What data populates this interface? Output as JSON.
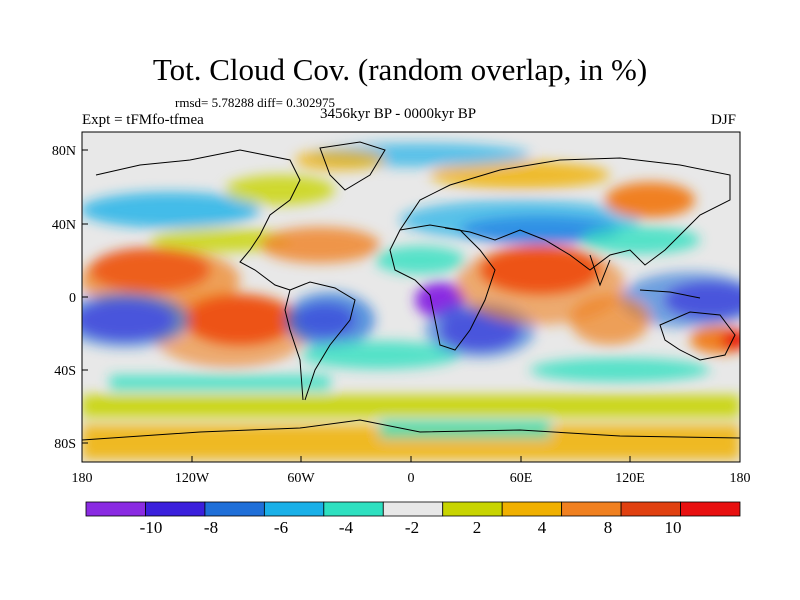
{
  "title": "Tot. Cloud Cov. (random overlap, in %)",
  "stats": "rmsd= 5.78288 diff= 0.302975",
  "experiment": "Expt = tFMfo-tfmea",
  "period": "3456kyr BP - 0000kyr BP",
  "season": "DJF",
  "axes": {
    "lon_ticks": [
      "180",
      "120W",
      "60W",
      "0",
      "60E",
      "120E",
      "180"
    ],
    "lat_ticks": [
      "80N",
      "40N",
      "0",
      "40S",
      "80S"
    ]
  },
  "colorbar": {
    "colors": [
      "#8a2be2",
      "#3b1fdc",
      "#1f6fd8",
      "#1ab0e8",
      "#2ee0c0",
      "#e8e8e8",
      "#c8d400",
      "#f0b000",
      "#f08020",
      "#e04010",
      "#e81010"
    ],
    "labels": [
      "-10",
      "-8",
      "-6",
      "-4",
      "-2",
      "2",
      "4",
      "8",
      "10"
    ]
  },
  "chart_data": {
    "type": "heatmap",
    "title": "Tot. Cloud Cov. (random overlap, in %)",
    "subtitle": "3456kyr BP - 0000kyr BP",
    "xlabel": "",
    "ylabel": "",
    "xlim": [
      -180,
      180
    ],
    "ylim": [
      -90,
      90
    ],
    "units": "%",
    "levels": [
      -10,
      -8,
      -6,
      -4,
      -2,
      2,
      4,
      8,
      10
    ],
    "regions": [
      {
        "name": "",
        "lon": [
          -165,
          -140
        ],
        "lat": [
          10,
          30
        ],
        "bin": 10
      },
      {
        "name": "",
        "lon": [
          -130,
          -95
        ],
        "lat": [
          -30,
          -10
        ],
        "bin": 10
      },
      {
        "name": "",
        "lon": [
          -175,
          -130
        ],
        "lat": [
          -30,
          -10
        ],
        "bin": -10
      },
      {
        "name": "",
        "lon": [
          -70,
          -40
        ],
        "lat": [
          -20,
          0
        ],
        "bin": -8
      },
      {
        "name": "",
        "lon": [
          10,
          40
        ],
        "lat": [
          -35,
          -15
        ],
        "bin": -10
      },
      {
        "name": "",
        "lon": [
          10,
          35
        ],
        "lat": [
          -5,
          10
        ],
        "bin": -10
      },
      {
        "name": "",
        "lon": [
          30,
          60
        ],
        "lat": [
          10,
          30
        ],
        "bin": 10
      },
      {
        "name": "",
        "lon": [
          130,
          180
        ],
        "lat": [
          -10,
          10
        ],
        "bin": -10
      },
      {
        "name": "",
        "lon": [
          150,
          180
        ],
        "lat": [
          -30,
          -15
        ],
        "bin": 10
      },
      {
        "name": "",
        "lon": [
          -180,
          180
        ],
        "lat": [
          -90,
          -60
        ],
        "bin": 4
      }
    ]
  }
}
